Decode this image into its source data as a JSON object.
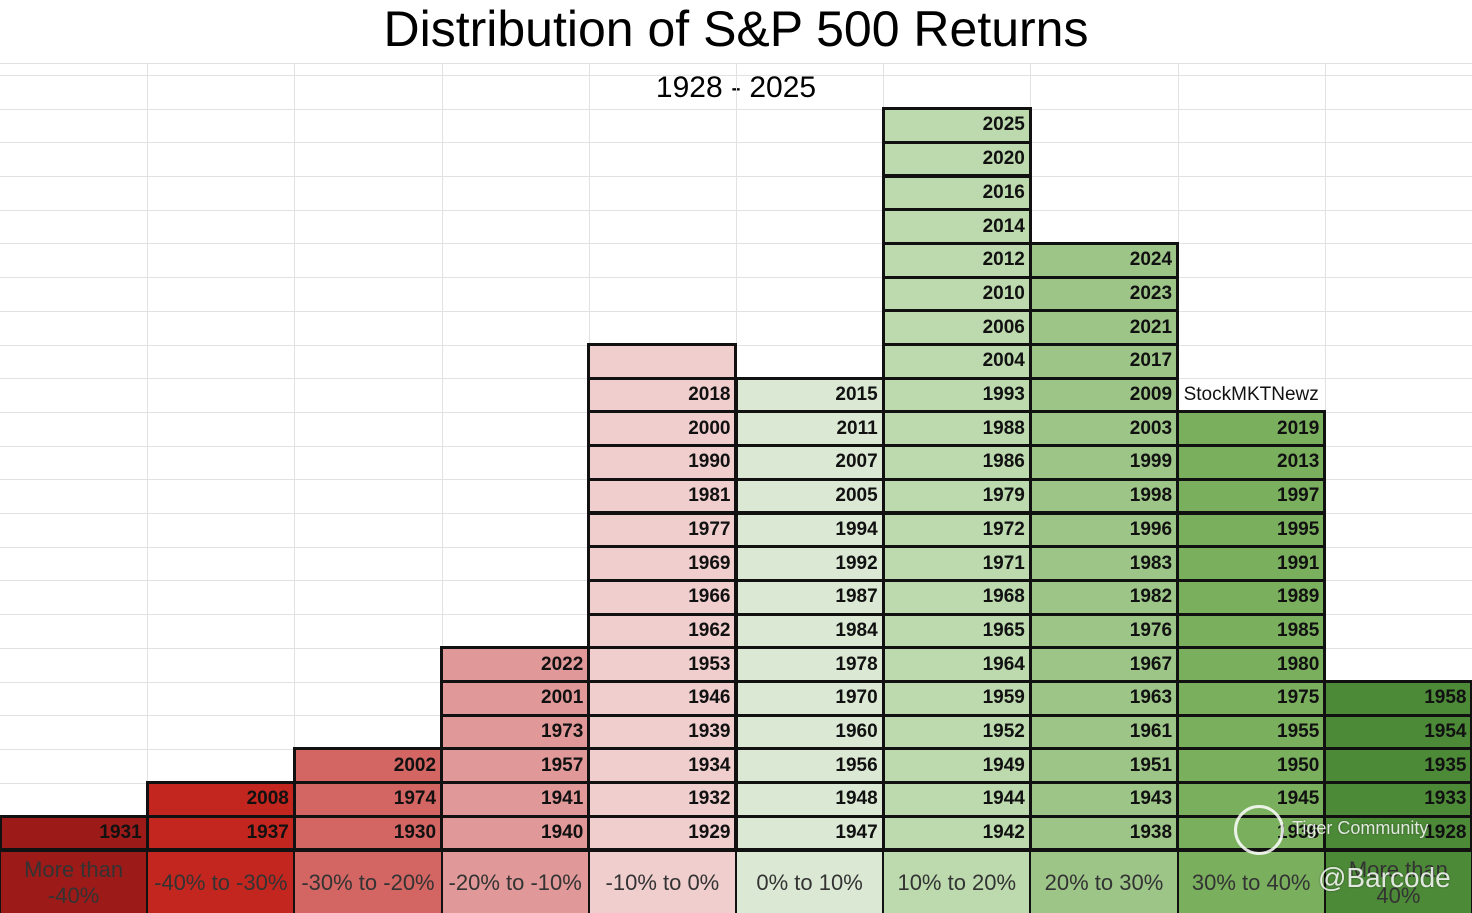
{
  "title": "Distribution of S&P 500 Returns",
  "subtitle": "1928 - 2025",
  "columns": [
    {
      "label": "More than -40%",
      "color": "#9c1a18",
      "years": [
        1931
      ]
    },
    {
      "label": "-40% to -30%",
      "color": "#c2261f",
      "years": [
        1937,
        2008
      ]
    },
    {
      "label": "-30% to -20%",
      "color": "#d36563",
      "years": [
        1930,
        1974,
        2002
      ]
    },
    {
      "label": "-20% to -10%",
      "color": "#e09898",
      "years": [
        1940,
        1941,
        1957,
        1973,
        2001,
        2022
      ]
    },
    {
      "label": "-10% to 0%",
      "color": "#f0cece",
      "years": [
        1929,
        1932,
        1934,
        1939,
        1946,
        1953,
        1962,
        1966,
        1969,
        1977,
        1981,
        1990,
        2000,
        2018,
        null
      ]
    },
    {
      "label": "0% to 10%",
      "color": "#dbe9d4",
      "years": [
        1947,
        1948,
        1956,
        1960,
        1970,
        1978,
        1984,
        1987,
        1992,
        1994,
        2005,
        2007,
        2011,
        2015
      ]
    },
    {
      "label": "10% to 20%",
      "color": "#bcdaae",
      "years": [
        1942,
        1944,
        1949,
        1952,
        1959,
        1964,
        1965,
        1968,
        1971,
        1972,
        1979,
        1986,
        1988,
        1993,
        2004,
        2006,
        2010,
        2012,
        2014,
        2016,
        2020,
        2025
      ]
    },
    {
      "label": "20% to 30%",
      "color": "#9dc588",
      "years": [
        1938,
        1943,
        1951,
        1961,
        1963,
        1967,
        1976,
        1982,
        1983,
        1996,
        1998,
        1999,
        2003,
        2009,
        2017,
        2021,
        2023,
        2024
      ]
    },
    {
      "label": "30% to 40%",
      "color": "#7aaf5e",
      "years": [
        1936,
        1945,
        1950,
        1955,
        1975,
        1980,
        1985,
        1989,
        1991,
        1995,
        1997,
        2013,
        2019
      ]
    },
    {
      "label": "More than 40%",
      "color": "#4d8a38",
      "years": [
        1928,
        1933,
        1935,
        1954,
        1958
      ]
    }
  ],
  "watermarks": {
    "source": "StockMKTNewz",
    "community": "Tiger Community",
    "handle": "@Barcode"
  }
}
